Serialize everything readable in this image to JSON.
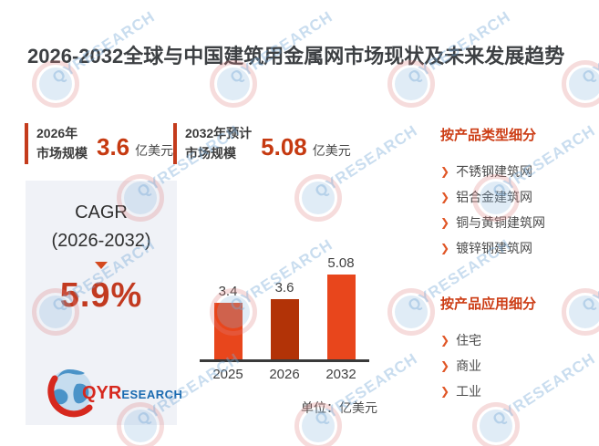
{
  "title": "2026-2032全球与中国建筑用金属网市场现状及未来发展趋势",
  "stats": [
    {
      "line1": "2026年",
      "line2": "市场规模",
      "value": "3.6",
      "unit": "亿美元"
    },
    {
      "line1": "2032年预计",
      "line2": "市场规模",
      "value": "5.08",
      "unit": "亿美元"
    }
  ],
  "cagr": {
    "label": "CAGR",
    "period": "(2026-2032)",
    "value": "5.9%"
  },
  "chart_data": {
    "type": "bar",
    "title": "",
    "categories": [
      "2025",
      "2026",
      "2032"
    ],
    "values": [
      3.4,
      3.6,
      5.08
    ],
    "value_labels": [
      "3.4",
      "3.6",
      "5.08"
    ],
    "bar_colors": [
      "#e8461c",
      "#b23307",
      "#e8461c"
    ],
    "unit_note": "单位：亿美元",
    "xlabel": "",
    "ylabel": "",
    "ylim": [
      0,
      5.5
    ],
    "grid": false,
    "legend": false
  },
  "sidebar": {
    "sections": [
      {
        "heading": "按产品类型细分",
        "items": [
          "不锈钢建筑网",
          "铝合金建筑网",
          "铜与黄铜建筑网",
          "镀锌钢建筑网"
        ]
      },
      {
        "heading": "按产品应用细分",
        "items": [
          "住宅",
          "商业",
          "工业"
        ]
      }
    ]
  },
  "logo": {
    "part1": "QYR",
    "part2": "ESEARCH"
  },
  "watermark": {
    "text": "QYRESEARCH"
  },
  "colors": {
    "accent": "#c63a11",
    "heading_accent": "#cc3c14",
    "bar_bright": "#e8461c",
    "bar_dark": "#b23307",
    "box_bg": "#f0f2f7",
    "title_text": "#3d4043"
  }
}
